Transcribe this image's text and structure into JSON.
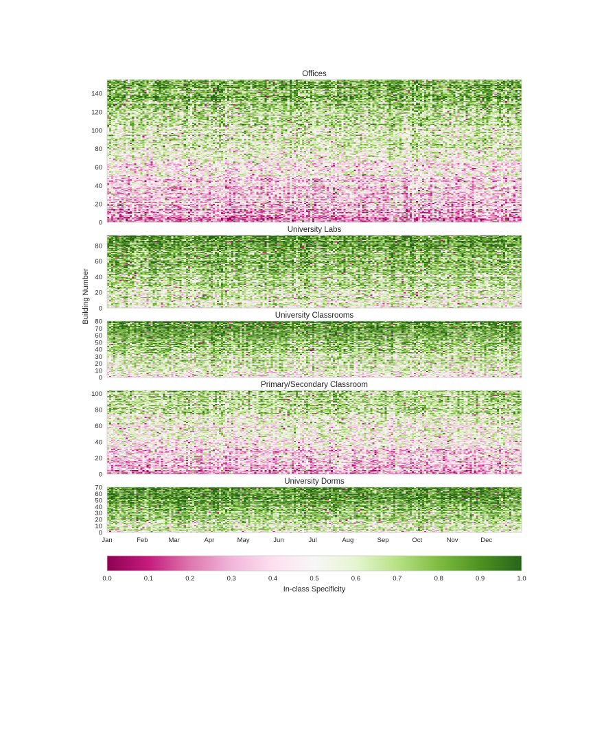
{
  "chart_data": {
    "type": "heatmap",
    "ylabel": "Building Number",
    "x_tick_labels": [
      "Jan",
      "Feb",
      "Mar",
      "Apr",
      "May",
      "Jun",
      "Jul",
      "Aug",
      "Sep",
      "Oct",
      "Nov",
      "Dec"
    ],
    "colorbar": {
      "label": "In-class Specificity",
      "range": [
        0.0,
        1.0
      ],
      "ticks": [
        "0.0",
        "0.1",
        "0.2",
        "0.3",
        "0.4",
        "0.5",
        "0.6",
        "0.7",
        "0.8",
        "0.9",
        "1.0"
      ],
      "colormap": "PiYG",
      "stops": [
        "#8e0152",
        "#c51b7d",
        "#de77ae",
        "#f1b6da",
        "#fde0ef",
        "#f7f7f7",
        "#e6f5d0",
        "#b8e186",
        "#7fbc41",
        "#4d9221",
        "#276419"
      ]
    },
    "panels": [
      {
        "title": "Offices",
        "n_buildings": 155,
        "ylim": [
          0,
          155
        ],
        "y_ticks": [
          "0",
          "20",
          "40",
          "60",
          "80",
          "100",
          "120",
          "140"
        ],
        "tick_step": 20,
        "trend": {
          "low_row_mean": 0.25,
          "high_row_mean": 0.85
        }
      },
      {
        "title": "University Labs",
        "n_buildings": 93,
        "ylim": [
          0,
          93
        ],
        "y_ticks": [
          "0",
          "20",
          "40",
          "60",
          "80"
        ],
        "tick_step": 20,
        "trend": {
          "low_row_mean": 0.55,
          "high_row_mean": 0.92
        }
      },
      {
        "title": "University Classrooms",
        "n_buildings": 80,
        "ylim": [
          0,
          80
        ],
        "y_ticks": [
          "0",
          "10",
          "20",
          "30",
          "40",
          "50",
          "60",
          "70",
          "80"
        ],
        "tick_step": 10,
        "trend": {
          "low_row_mean": 0.5,
          "high_row_mean": 0.93
        }
      },
      {
        "title": "Primary/Secondary Classroom",
        "n_buildings": 104,
        "ylim": [
          0,
          104
        ],
        "y_ticks": [
          "0",
          "20",
          "40",
          "60",
          "80",
          "100"
        ],
        "tick_step": 20,
        "trend": {
          "low_row_mean": 0.3,
          "high_row_mean": 0.72
        }
      },
      {
        "title": "University Dorms",
        "n_buildings": 70,
        "ylim": [
          0,
          70
        ],
        "y_ticks": [
          "0",
          "10",
          "20",
          "30",
          "40",
          "50",
          "60",
          "70"
        ],
        "tick_step": 10,
        "trend": {
          "low_row_mean": 0.6,
          "high_row_mean": 0.95
        }
      }
    ]
  }
}
